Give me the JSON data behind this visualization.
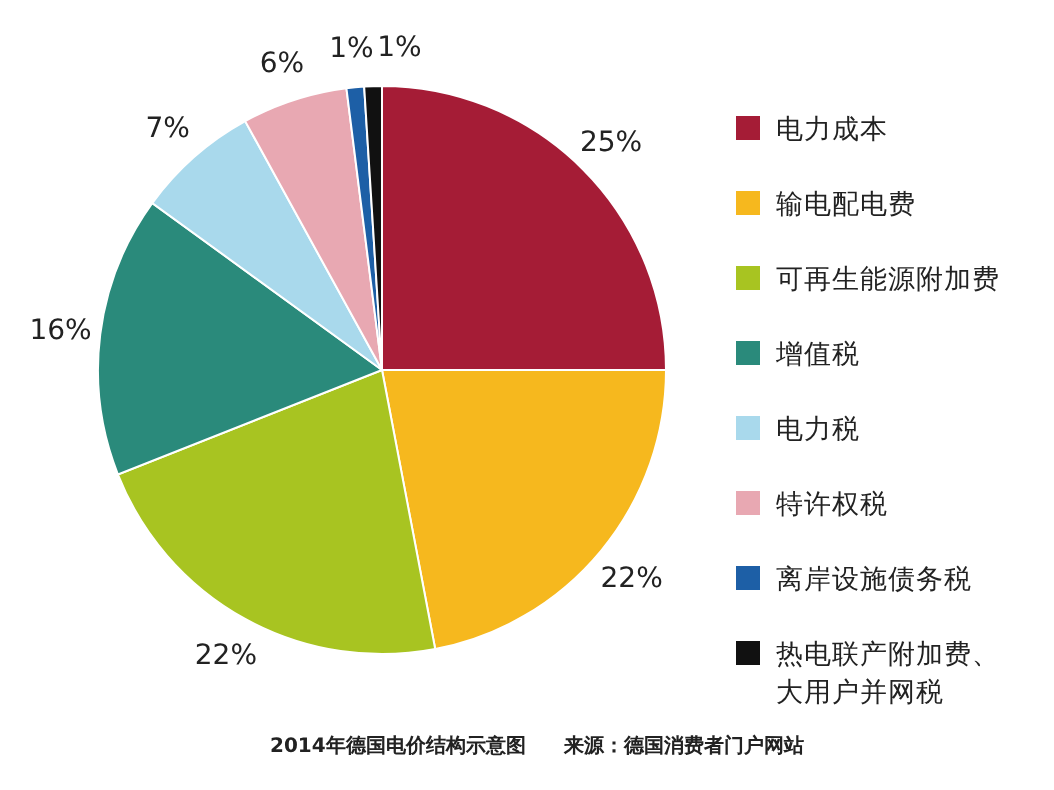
{
  "chart_data": {
    "type": "pie",
    "categories": [
      "电力成本",
      "输电配电费",
      "可再生能源附加费",
      "增值税",
      "电力税",
      "特许权税",
      "离岸设施债务税",
      "热电联产附加费、大用户并网税"
    ],
    "values": [
      25,
      22,
      22,
      16,
      7,
      6,
      1,
      1
    ],
    "value_labels": [
      "25%",
      "22%",
      "22%",
      "16%",
      "7%",
      "6%",
      "1%",
      "1%"
    ],
    "colors": [
      "#a51c36",
      "#f6b81e",
      "#a8c421",
      "#2a8a7b",
      "#a9d9ec",
      "#e8a8b2",
      "#1d5fa6",
      "#111111"
    ],
    "legend": "right",
    "annotations": [
      "2014年德国电价结构示意图",
      "来源：德国消费者门户网站"
    ]
  }
}
